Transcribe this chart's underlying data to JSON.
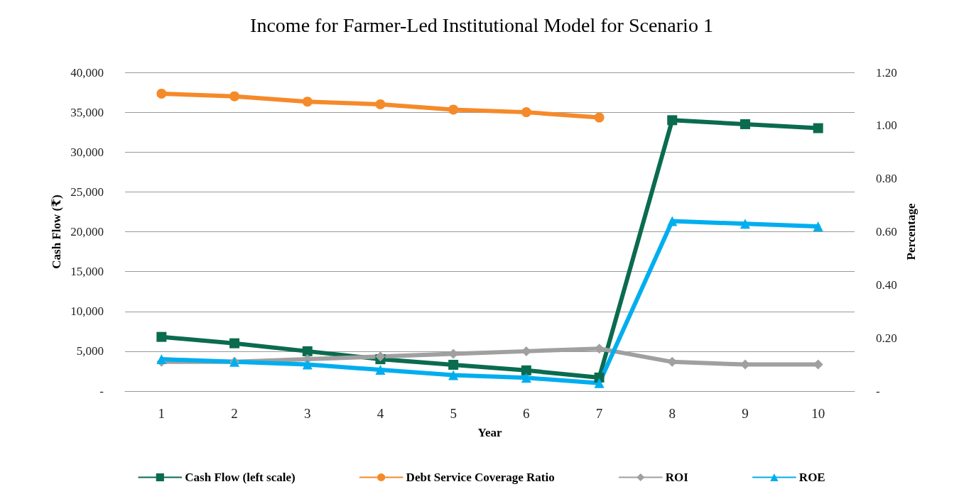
{
  "chart_data": {
    "type": "line",
    "title": "Income for Farmer-Led Institutional Model for Scenario 1",
    "xlabel": "Year",
    "ylabel": "Cash Flow (₹)",
    "y2label": "Percentage",
    "categories": [
      "1",
      "2",
      "3",
      "4",
      "5",
      "6",
      "7",
      "8",
      "9",
      "10"
    ],
    "series": [
      {
        "name": "Cash Flow (left scale)",
        "color": "#0b6b4f",
        "marker": "square",
        "values": [
          6800,
          6000,
          5000,
          4000,
          3300,
          2600,
          1700,
          34000,
          33500,
          33000
        ]
      },
      {
        "name": "Debt Service Coverage Ratio",
        "color": "#f58a2a",
        "marker": "circle",
        "axis": "y2",
        "values": [
          1.12,
          1.11,
          1.09,
          1.08,
          1.06,
          1.05,
          1.03,
          null,
          null,
          null
        ]
      },
      {
        "name": "ROI",
        "color": "#a0a0a0",
        "marker": "diamond",
        "axis": "y2",
        "values": [
          0.11,
          0.11,
          0.12,
          0.13,
          0.14,
          0.15,
          0.16,
          0.11,
          0.1,
          0.1
        ]
      },
      {
        "name": "ROE",
        "color": "#00aeef",
        "marker": "triangle",
        "axis": "y2",
        "values": [
          0.12,
          0.11,
          0.1,
          0.08,
          0.06,
          0.05,
          0.03,
          0.64,
          0.63,
          0.62
        ]
      }
    ],
    "ylim": [
      0,
      40000
    ],
    "yticks": [
      {
        "value": 0,
        "label": "-"
      },
      {
        "value": 5000,
        "label": "5,000"
      },
      {
        "value": 10000,
        "label": "10,000"
      },
      {
        "value": 15000,
        "label": "15,000"
      },
      {
        "value": 20000,
        "label": "20,000"
      },
      {
        "value": 25000,
        "label": "25,000"
      },
      {
        "value": 30000,
        "label": "30,000"
      },
      {
        "value": 35000,
        "label": "35,000"
      },
      {
        "value": 40000,
        "label": "40,000"
      }
    ],
    "y2lim": [
      0,
      1.2
    ],
    "y2ticks": [
      {
        "value": 0,
        "label": "-"
      },
      {
        "value": 0.2,
        "label": "0.20"
      },
      {
        "value": 0.4,
        "label": "0.40"
      },
      {
        "value": 0.6,
        "label": "0.60"
      },
      {
        "value": 0.8,
        "label": "0.80"
      },
      {
        "value": 1,
        "label": "1.00"
      },
      {
        "value": 1.2,
        "label": "1.20"
      }
    ],
    "grid": "y",
    "legend": "bottom",
    "line_style": "solid"
  }
}
